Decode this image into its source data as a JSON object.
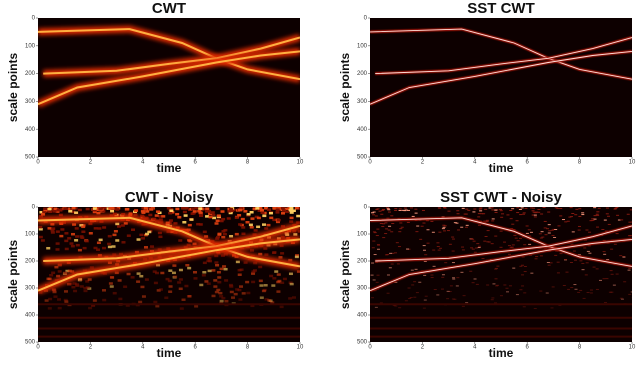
{
  "chart_data": [
    {
      "type": "heatmap",
      "title": "CWT",
      "xlabel": "time",
      "ylabel": "scale points",
      "xlim": [
        0,
        10
      ],
      "xticks": [
        0,
        2,
        4,
        6,
        8,
        10
      ],
      "ylim": [
        0,
        500
      ],
      "yticks": [
        0,
        100,
        200,
        300,
        400,
        500
      ],
      "y_inverted": true
    },
    {
      "type": "heatmap",
      "title": "SST CWT",
      "xlabel": "time",
      "ylabel": "scale points",
      "xlim": [
        0,
        10
      ],
      "xticks": [
        0,
        2,
        4,
        6,
        8,
        10
      ],
      "ylim": [
        0,
        500
      ],
      "yticks": [
        0,
        100,
        200,
        300,
        400,
        500
      ],
      "y_inverted": true
    },
    {
      "type": "heatmap",
      "title": "CWT - Noisy",
      "xlabel": "time",
      "ylabel": "scale points",
      "xlim": [
        0,
        10
      ],
      "xticks": [
        0,
        2,
        4,
        6,
        8,
        10
      ],
      "ylim": [
        0,
        500
      ],
      "yticks": [
        0,
        100,
        200,
        300,
        400,
        500
      ],
      "y_inverted": true
    },
    {
      "type": "heatmap",
      "title": "SST CWT - Noisy",
      "xlabel": "time",
      "ylabel": "scale points",
      "xlim": [
        0,
        10
      ],
      "xticks": [
        0,
        2,
        4,
        6,
        8,
        10
      ],
      "ylim": [
        0,
        500
      ],
      "yticks": [
        0,
        100,
        200,
        300,
        400,
        500
      ],
      "y_inverted": true
    }
  ]
}
